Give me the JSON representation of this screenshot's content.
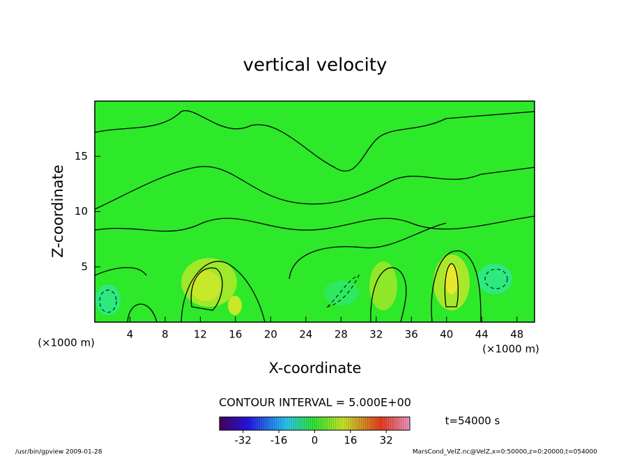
{
  "chart_data": {
    "type": "contour",
    "title": "vertical velocity",
    "x_label": "X-coordinate",
    "y_label": "Z-coordinate",
    "x_unit_left": "(×1000 m)",
    "x_unit_right": "(×1000 m)",
    "xlim": [
      0,
      50
    ],
    "xticks": [
      4,
      8,
      12,
      16,
      20,
      24,
      28,
      32,
      36,
      40,
      44,
      48
    ],
    "ylim": [
      0,
      20
    ],
    "yticks": [
      5,
      10,
      15
    ],
    "contour_interval": "CONTOUR INTERVAL = 5.000E+00",
    "time_label": "t=54000 s",
    "colorbar_lim": [
      -42.5,
      42.5
    ],
    "colorbar_ticks": [
      -32,
      -16,
      0,
      16,
      32
    ],
    "footer_left": "/usr/bin/gpview  2009-01-28",
    "footer_right": "MarsCond_VelZ.nc@VelZ,x=0:50000,z=0:20000,t=054000"
  }
}
